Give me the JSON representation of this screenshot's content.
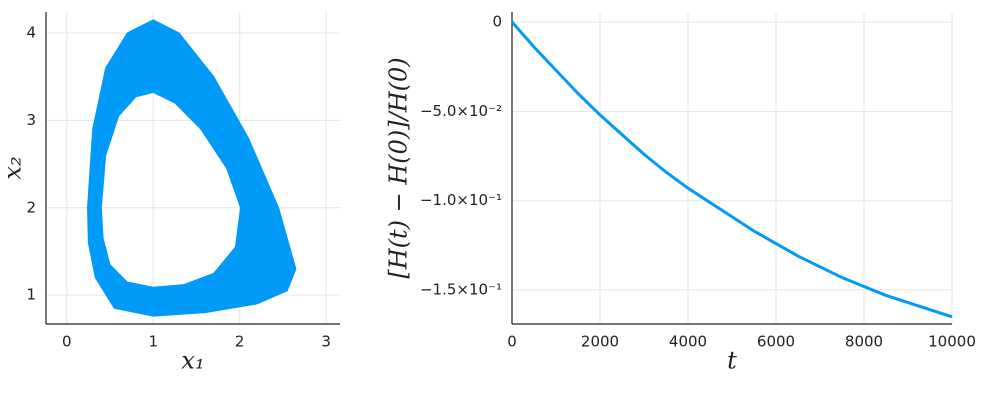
{
  "chart_data": [
    {
      "type": "ring",
      "xlabel": "x₁",
      "ylabel": "x₂",
      "color": "#009af9",
      "xlim": [
        -0.24,
        3.16
      ],
      "ylim": [
        0.67,
        4.24
      ],
      "xticks": [
        0,
        1,
        2,
        3
      ],
      "yticks": [
        1,
        2,
        3,
        4
      ],
      "grid": true,
      "series": [
        {
          "x": [
            0.24,
            0.3,
            0.45,
            0.7,
            1.0,
            1.3,
            1.7,
            2.1,
            2.45,
            2.65,
            2.55,
            2.2,
            1.6,
            1.0,
            0.55,
            0.33,
            0.25,
            0.24
          ],
          "values": [
            2.0,
            2.9,
            3.6,
            4.0,
            4.15,
            4.0,
            3.5,
            2.8,
            2.0,
            1.3,
            1.05,
            0.9,
            0.8,
            0.76,
            0.85,
            1.2,
            1.6,
            2.0
          ]
        },
        {
          "x": [
            0.4,
            0.45,
            0.6,
            0.8,
            1.0,
            1.25,
            1.55,
            1.85,
            2.01,
            1.95,
            1.7,
            1.35,
            1.0,
            0.7,
            0.5,
            0.42,
            0.4
          ],
          "values": [
            2.0,
            2.6,
            3.05,
            3.27,
            3.32,
            3.2,
            2.9,
            2.45,
            2.0,
            1.55,
            1.25,
            1.12,
            1.09,
            1.15,
            1.35,
            1.65,
            2.0
          ]
        }
      ]
    },
    {
      "type": "line",
      "xlabel": "t",
      "ylabel": "[H(t) − H(0)]/H(0)",
      "color": "#009af9",
      "xlim": [
        0,
        10000
      ],
      "ylim": [
        -0.169,
        0.0056
      ],
      "xticks": [
        0,
        2000,
        4000,
        6000,
        8000,
        10000
      ],
      "yticks": [
        0,
        {
          "value": -0.05,
          "label": "−5.0×10⁻²"
        },
        {
          "value": -0.1,
          "label": "−1.0×10⁻¹"
        },
        {
          "value": -0.15,
          "label": "−1.5×10⁻¹"
        }
      ],
      "grid": true,
      "x": [
        0,
        500,
        1000,
        1500,
        2000,
        2500,
        3000,
        3500,
        4000,
        4500,
        5000,
        5500,
        6000,
        6500,
        7000,
        7500,
        8000,
        8500,
        9000,
        9500,
        10000
      ],
      "values": [
        0,
        -0.014,
        -0.027,
        -0.04,
        -0.052,
        -0.063,
        -0.074,
        -0.084,
        -0.093,
        -0.101,
        -0.109,
        -0.117,
        -0.124,
        -0.131,
        -0.137,
        -0.143,
        -0.148,
        -0.153,
        -0.157,
        -0.161,
        -0.165
      ]
    }
  ]
}
